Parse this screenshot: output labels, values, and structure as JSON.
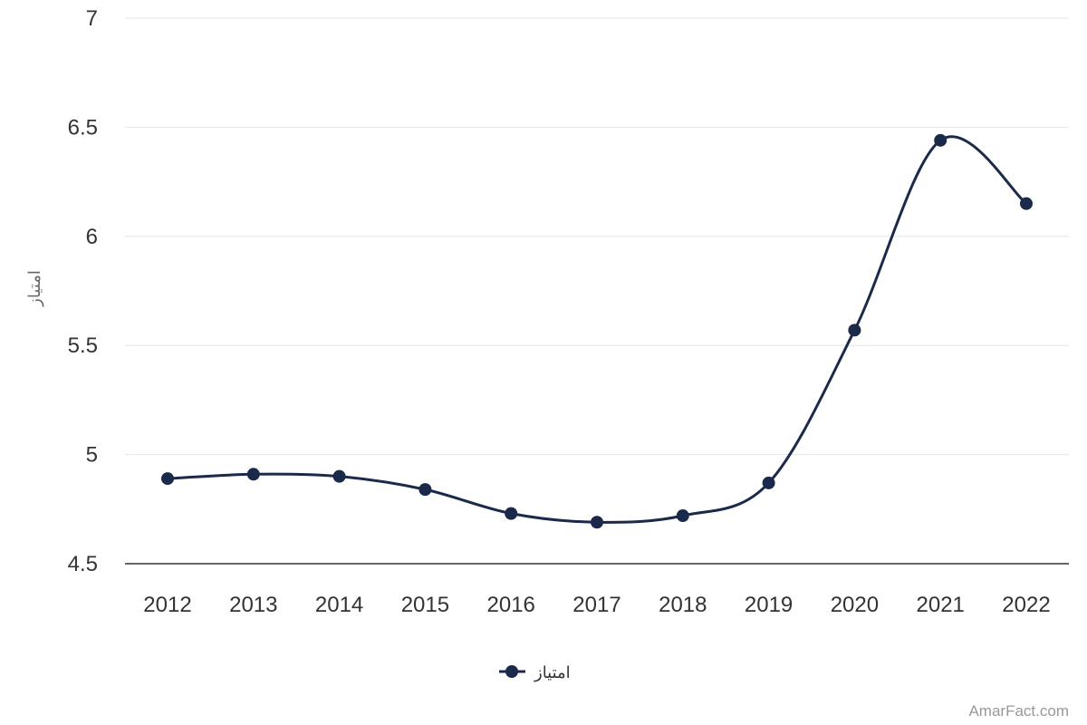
{
  "colors": {
    "series": "#1b2a4a",
    "grid": "#e6e6e6",
    "baseline": "#333333",
    "text": "#333333",
    "axis_title": "#666666",
    "credit": "#999999"
  },
  "chart_data": {
    "type": "line",
    "title": "",
    "xlabel": "",
    "ylabel": "امتیاز",
    "ylim": [
      4.5,
      7
    ],
    "yticks": [
      "4.5",
      "5",
      "5.5",
      "6",
      "6.5",
      "7"
    ],
    "grid": true,
    "smooth": true,
    "legend_position": "bottom-center",
    "categories": [
      "2012",
      "2013",
      "2014",
      "2015",
      "2016",
      "2017",
      "2018",
      "2019",
      "2020",
      "2021",
      "2022"
    ],
    "series": [
      {
        "name": "امتیاز",
        "values": [
          4.89,
          4.91,
          4.9,
          4.84,
          4.73,
          4.69,
          4.72,
          4.87,
          5.57,
          6.44,
          6.15
        ]
      }
    ]
  },
  "credit": "AmarFact.com"
}
